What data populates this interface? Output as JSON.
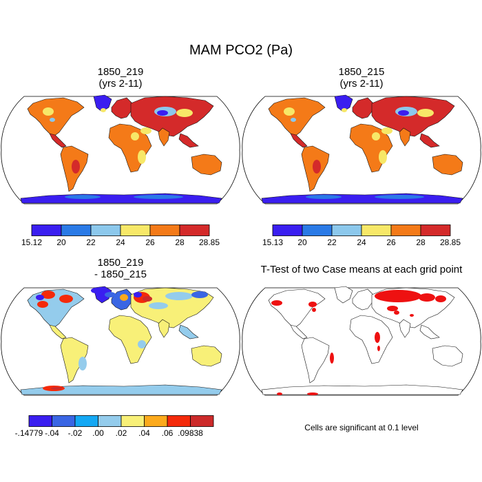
{
  "main_title": "MAM PCO2 (Pa)",
  "panels": {
    "top_left": {
      "title1": "1850_219",
      "title2": "(yrs 2-11)"
    },
    "top_right": {
      "title1": "1850_215",
      "title2": "(yrs 2-11)"
    },
    "bottom_left": {
      "title1": "1850_219",
      "title2": "- 1850_215"
    },
    "bottom_right": {
      "title1": "T-Test of two Case means at each grid point"
    }
  },
  "note": "Cells are significant at 0.1 level",
  "chart_data": [
    {
      "type": "heatmap",
      "title": "1850_219 (yrs 2-11)",
      "projection": "robinson",
      "colorbar": {
        "labels": [
          "15.12",
          "20",
          "22",
          "24",
          "26",
          "28",
          "28.85"
        ],
        "colors": [
          "#3a1ef0",
          "#2a7ae6",
          "#8cc8ec",
          "#f7e868",
          "#f47a18",
          "#d42a2a"
        ]
      }
    },
    {
      "type": "heatmap",
      "title": "1850_215 (yrs 2-11)",
      "projection": "robinson",
      "colorbar": {
        "labels": [
          "15.13",
          "20",
          "22",
          "24",
          "26",
          "28",
          "28.85"
        ],
        "colors": [
          "#3a1ef0",
          "#2a7ae6",
          "#8cc8ec",
          "#f7e868",
          "#f47a18",
          "#d42a2a"
        ]
      }
    },
    {
      "type": "heatmap",
      "title": "1850_219 - 1850_215",
      "projection": "robinson",
      "colorbar": {
        "labels": [
          "-.14779",
          "-.04",
          "-.02",
          ".00",
          ".02",
          ".04",
          ".06",
          ".09838"
        ],
        "colors": [
          "#3a1ef0",
          "#3a66e4",
          "#14a8f4",
          "#94ccec",
          "#f8f078",
          "#fcaa1c",
          "#f42a0a",
          "#cc2a2a"
        ]
      }
    },
    {
      "type": "heatmap",
      "title": "T-Test of two Case means at each grid point",
      "projection": "robinson",
      "significance_color": "#ee1111"
    }
  ]
}
